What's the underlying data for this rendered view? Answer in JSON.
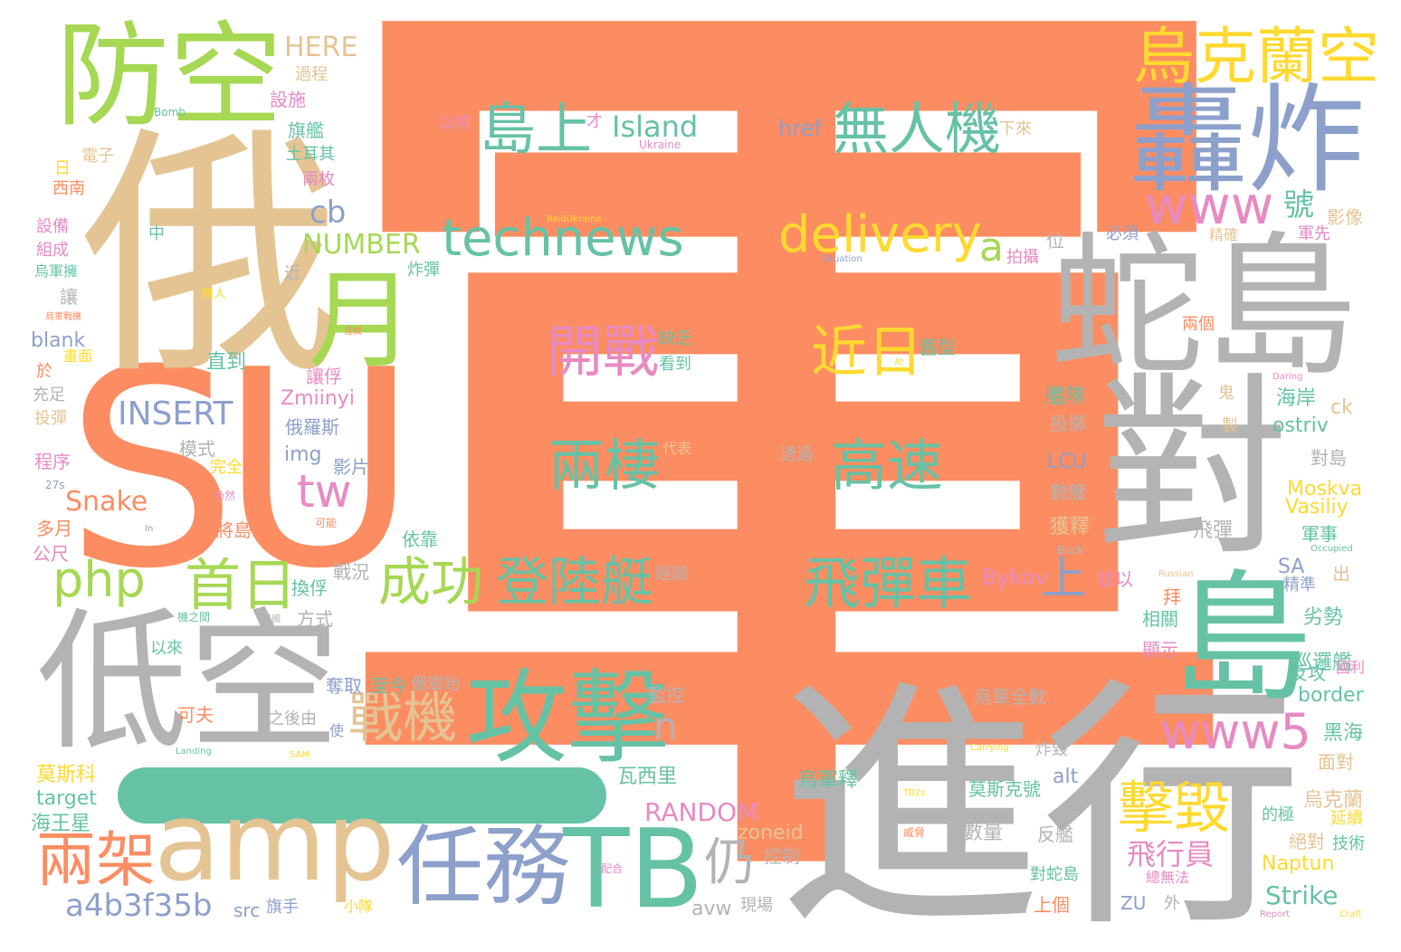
{
  "palette": {
    "orange": "#fc8d62",
    "teal": "#66c2a5",
    "blue": "#8da0cb",
    "pink": "#e78ac3",
    "green": "#a6d854",
    "yellow": "#ffd92f",
    "tan": "#e5c494",
    "gray": "#b3b3b3"
  },
  "words": [
    {
      "t": "軍",
      "c": "orange"
    },
    {
      "t": "SU",
      "c": "orange"
    },
    {
      "t": "俄",
      "c": "tan"
    },
    {
      "t": "進行",
      "c": "gray"
    },
    {
      "t": "對",
      "c": "gray"
    },
    {
      "t": "蛇島",
      "c": "gray"
    },
    {
      "t": "低空",
      "c": "gray"
    },
    {
      "t": "轟炸",
      "c": "blue"
    },
    {
      "t": "防空",
      "c": "green"
    },
    {
      "t": "amp",
      "c": "tan"
    },
    {
      "t": "TB",
      "c": "teal"
    },
    {
      "t": "攻擊",
      "c": "teal"
    },
    {
      "t": "任務",
      "c": "blue"
    },
    {
      "t": "島",
      "c": "teal"
    },
    {
      "t": "月",
      "c": "green"
    },
    {
      "t": "兩架",
      "c": "orange"
    },
    {
      "t": "烏克蘭空",
      "c": "yellow"
    },
    {
      "t": "technews",
      "c": "teal"
    },
    {
      "t": "delivery",
      "c": "yellow"
    },
    {
      "t": "www",
      "c": "pink"
    },
    {
      "t": "www5",
      "c": "pink"
    },
    {
      "t": "無人機",
      "c": "teal"
    },
    {
      "t": "島上",
      "c": "teal"
    },
    {
      "t": "開戰",
      "c": "pink"
    },
    {
      "t": "近日",
      "c": "yellow"
    },
    {
      "t": "兩棲",
      "c": "teal"
    },
    {
      "t": "高速",
      "c": "teal"
    },
    {
      "t": "成功",
      "c": "green"
    },
    {
      "t": "登陸艇",
      "c": "teal"
    },
    {
      "t": "飛彈車",
      "c": "teal"
    },
    {
      "t": "戰機",
      "c": "tan"
    },
    {
      "t": "首日",
      "c": "green"
    },
    {
      "t": "php",
      "c": "green"
    },
    {
      "t": "擊毀",
      "c": "yellow"
    },
    {
      "t": "a4b3f35b",
      "c": "blue"
    },
    {
      "t": "INSERT",
      "c": "blue"
    },
    {
      "t": "tw",
      "c": "pink"
    },
    {
      "t": "仍",
      "c": "gray"
    },
    {
      "t": "Snake",
      "c": "orange"
    },
    {
      "t": "NUMBER",
      "c": "green"
    },
    {
      "t": "cb",
      "c": "blue"
    },
    {
      "t": "a",
      "c": "green"
    },
    {
      "t": "上",
      "c": "blue"
    },
    {
      "t": "n",
      "c": "gray"
    },
    {
      "t": "號",
      "c": "teal"
    },
    {
      "t": "飛行員",
      "c": "pink"
    },
    {
      "t": "RANDOM",
      "c": "pink"
    },
    {
      "t": "Island",
      "c": "teal"
    },
    {
      "t": "HERE",
      "c": "tan"
    },
    {
      "t": "Zmiinyi",
      "c": "pink"
    },
    {
      "t": "Moskva",
      "c": "yellow"
    },
    {
      "t": "Vasiliy",
      "c": "yellow"
    },
    {
      "t": "Strike",
      "c": "teal"
    },
    {
      "t": "Naptun",
      "c": "yellow"
    },
    {
      "t": "border",
      "c": "teal"
    },
    {
      "t": "ostriv",
      "c": "teal"
    },
    {
      "t": "Bykov",
      "c": "pink"
    },
    {
      "t": "href",
      "c": "blue"
    },
    {
      "t": "target",
      "c": "teal"
    },
    {
      "t": "blank",
      "c": "blue"
    },
    {
      "t": "LCU",
      "c": "blue"
    },
    {
      "t": "img",
      "c": "blue"
    },
    {
      "t": "zoneid",
      "c": "tan"
    },
    {
      "t": "alt",
      "c": "blue"
    },
    {
      "t": "avw",
      "c": "gray"
    },
    {
      "t": "src",
      "c": "blue"
    },
    {
      "t": "ck",
      "c": "tan"
    },
    {
      "t": "SA",
      "c": "blue"
    },
    {
      "t": "ZU",
      "c": "blue"
    },
    {
      "t": "莫斯科",
      "c": "yellow"
    },
    {
      "t": "海王星",
      "c": "teal"
    },
    {
      "t": "瓦西里",
      "c": "teal"
    },
    {
      "t": "俄羅斯",
      "c": "blue"
    },
    {
      "t": "黑海",
      "c": "teal"
    },
    {
      "t": "巡邏艦",
      "c": "teal"
    },
    {
      "t": "劣勢",
      "c": "teal"
    },
    {
      "t": "反攻",
      "c": "teal"
    },
    {
      "t": "面對",
      "c": "tan"
    },
    {
      "t": "延續",
      "c": "yellow"
    },
    {
      "t": "技術",
      "c": "teal"
    },
    {
      "t": "烏克蘭",
      "c": "tan"
    },
    {
      "t": "絕對",
      "c": "tan"
    },
    {
      "t": "的極",
      "c": "teal"
    },
    {
      "t": "出",
      "c": "tan"
    },
    {
      "t": "精準",
      "c": "blue"
    },
    {
      "t": "軍事",
      "c": "teal"
    },
    {
      "t": "飛彈",
      "c": "gray"
    },
    {
      "t": "獲釋",
      "c": "tan"
    },
    {
      "t": "數艘",
      "c": "gray"
    },
    {
      "t": "投擲",
      "c": "gray"
    },
    {
      "t": "艦隊",
      "c": "teal"
    },
    {
      "t": "海岸",
      "c": "teal"
    },
    {
      "t": "對島",
      "c": "gray"
    },
    {
      "t": "相關",
      "c": "teal"
    },
    {
      "t": "顯示",
      "c": "pink"
    },
    {
      "t": "拜",
      "c": "orange"
    },
    {
      "t": "號以",
      "c": "pink"
    },
    {
      "t": "經驗",
      "c": "gray"
    },
    {
      "t": "行動",
      "c": "orange"
    },
    {
      "t": "戰況",
      "c": "gray"
    },
    {
      "t": "換俘",
      "c": "teal"
    },
    {
      "t": "直到",
      "c": "teal"
    },
    {
      "t": "模式",
      "c": "gray"
    },
    {
      "t": "完全",
      "c": "yellow"
    },
    {
      "t": "影片",
      "c": "blue"
    },
    {
      "t": "將島",
      "c": "orange"
    },
    {
      "t": "依靠",
      "c": "teal"
    },
    {
      "t": "方式",
      "c": "gray"
    },
    {
      "t": "奪取",
      "c": "blue"
    },
    {
      "t": "至今",
      "c": "teal"
    },
    {
      "t": "俄軍始",
      "c": "gray"
    },
    {
      "t": "之後由",
      "c": "gray"
    },
    {
      "t": "監控",
      "c": "gray"
    },
    {
      "t": "烏軍全數",
      "c": "gray"
    },
    {
      "t": "炸毀",
      "c": "gray"
    },
    {
      "t": "烏軍釋",
      "c": "teal"
    },
    {
      "t": "莫斯克號",
      "c": "teal"
    },
    {
      "t": "數量",
      "c": "gray"
    },
    {
      "t": "反艦",
      "c": "gray"
    },
    {
      "t": "對蛇島",
      "c": "teal"
    },
    {
      "t": "上個",
      "c": "orange"
    },
    {
      "t": "控制",
      "c": "gray"
    },
    {
      "t": "現場",
      "c": "gray"
    },
    {
      "t": "旗手",
      "c": "blue"
    },
    {
      "t": "小隊",
      "c": "yellow"
    },
    {
      "t": "可夫",
      "c": "orange"
    },
    {
      "t": "多月",
      "c": "orange"
    },
    {
      "t": "公尺",
      "c": "pink"
    },
    {
      "t": "程序",
      "c": "pink"
    },
    {
      "t": "投彈",
      "c": "tan"
    },
    {
      "t": "充足",
      "c": "gray"
    },
    {
      "t": "於",
      "c": "orange"
    },
    {
      "t": "畫面",
      "c": "yellow"
    },
    {
      "t": "組成",
      "c": "pink"
    },
    {
      "t": "設備",
      "c": "pink"
    },
    {
      "t": "西南",
      "c": "orange"
    },
    {
      "t": "日",
      "c": "yellow"
    },
    {
      "t": "電子",
      "c": "tan"
    },
    {
      "t": "設施",
      "c": "pink"
    },
    {
      "t": "過程",
      "c": "tan"
    },
    {
      "t": "旗艦",
      "c": "teal"
    },
    {
      "t": "土耳其",
      "c": "teal"
    },
    {
      "t": "兩枚",
      "c": "pink"
    },
    {
      "t": "中",
      "c": "teal"
    },
    {
      "t": "近",
      "c": "gray"
    },
    {
      "t": "讓",
      "c": "gray"
    },
    {
      "t": "炸彈",
      "c": "teal"
    },
    {
      "t": "讓俘",
      "c": "pink"
    },
    {
      "t": "缺乏",
      "c": "teal"
    },
    {
      "t": "看到",
      "c": "teal"
    },
    {
      "t": "舊型",
      "c": "teal"
    },
    {
      "t": "透過",
      "c": "gray"
    },
    {
      "t": "這項",
      "c": "orange"
    },
    {
      "t": "執行",
      "c": "orange"
    },
    {
      "t": "代表",
      "c": "tan"
    },
    {
      "t": "以將",
      "c": "pink"
    },
    {
      "t": "才",
      "c": "pink"
    },
    {
      "t": "下來",
      "c": "tan"
    },
    {
      "t": "位",
      "c": "gray"
    },
    {
      "t": "必須",
      "c": "blue"
    },
    {
      "t": "拍攝",
      "c": "pink"
    },
    {
      "t": "精確",
      "c": "tan"
    },
    {
      "t": "軍先",
      "c": "pink"
    },
    {
      "t": "影像",
      "c": "tan"
    },
    {
      "t": "兩個",
      "c": "orange"
    },
    {
      "t": "鬼",
      "c": "tan"
    },
    {
      "t": "製",
      "c": "tan"
    },
    {
      "t": "國利",
      "c": "pink"
    },
    {
      "t": "總無法",
      "c": "pink"
    },
    {
      "t": "外",
      "c": "gray"
    },
    {
      "t": "Bomb",
      "c": "teal"
    },
    {
      "t": "Ukraine",
      "c": "pink"
    },
    {
      "t": "RaidUkraine",
      "c": "yellow"
    },
    {
      "t": "Situation",
      "c": "blue"
    },
    {
      "t": "At",
      "c": "yellow"
    },
    {
      "t": "Daring",
      "c": "pink"
    },
    {
      "t": "Occupied",
      "c": "teal"
    },
    {
      "t": "Russian",
      "c": "tan"
    },
    {
      "t": "Back",
      "c": "gray"
    },
    {
      "t": "Carrying",
      "c": "yellow"
    },
    {
      "t": "TB2s",
      "c": "yellow"
    },
    {
      "t": "Report",
      "c": "pink"
    },
    {
      "t": "Craft",
      "c": "yellow"
    },
    {
      "t": "Landing",
      "c": "teal"
    },
    {
      "t": "SAM",
      "c": "yellow"
    },
    {
      "t": "27s",
      "c": "blue"
    },
    {
      "t": "In",
      "c": "blue"
    },
    {
      "t": "配合",
      "c": "pink"
    },
    {
      "t": "威脅",
      "c": "orange"
    },
    {
      "t": "仍然",
      "c": "pink"
    },
    {
      "t": "可能",
      "c": "orange"
    },
    {
      "t": "首國",
      "c": "gray"
    },
    {
      "t": "以來",
      "c": "teal"
    },
    {
      "t": "烏軍戰機",
      "c": "orange"
    },
    {
      "t": "烏軍擁",
      "c": "teal"
    },
    {
      "t": "無人",
      "c": "yellow"
    },
    {
      "t": "造成",
      "c": "orange"
    },
    {
      "t": "機之間",
      "c": "teal"
    },
    {
      "t": "使",
      "c": "blue"
    }
  ]
}
